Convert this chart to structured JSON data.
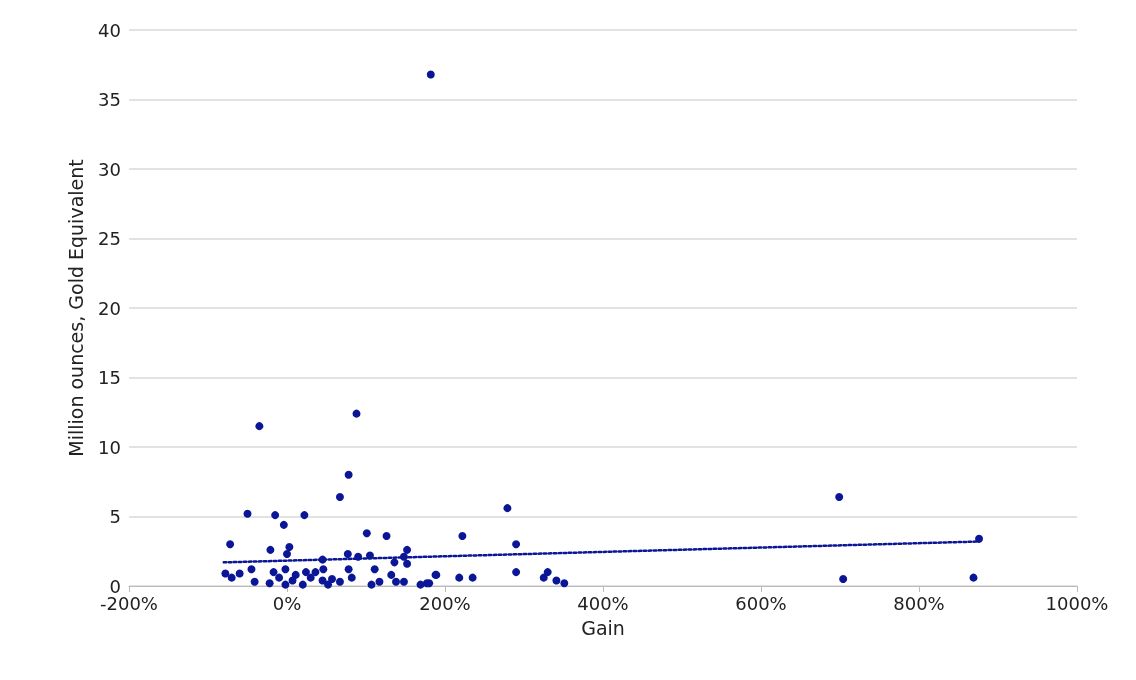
{
  "chart_data": {
    "type": "scatter",
    "xlabel": "Gain",
    "ylabel": "Million ounces, Gold Equivalent",
    "xlim": [
      -200,
      1000
    ],
    "xticks": [
      {
        "value": -200,
        "label": "-200%"
      },
      {
        "value": 0,
        "label": "0%"
      },
      {
        "value": 200,
        "label": "200%"
      },
      {
        "value": 400,
        "label": "400%"
      },
      {
        "value": 600,
        "label": "600%"
      },
      {
        "value": 800,
        "label": "800%"
      },
      {
        "value": 1000,
        "label": "1000%"
      }
    ],
    "ylim": [
      0,
      40
    ],
    "yticks": [
      0,
      5,
      10,
      15,
      20,
      25,
      30,
      35,
      40
    ],
    "grid": "y",
    "marker": "circle",
    "series": [
      {
        "color": "#0a1696",
        "x": [
          182,
          88,
          -35,
          78,
          67,
          -50,
          -15,
          22,
          -4,
          -72,
          -21,
          3,
          0,
          101,
          126,
          152,
          148,
          77,
          90,
          105,
          136,
          152,
          45,
          -45,
          -78,
          -60,
          -70,
          -41,
          -22,
          -17,
          -2,
          -2,
          11,
          24,
          30,
          20,
          36,
          46,
          57,
          67,
          78,
          82,
          111,
          107,
          117,
          132,
          138,
          148,
          169,
          -10,
          7,
          45,
          52,
          180,
          188,
          279,
          222,
          290,
          189,
          218,
          235,
          290,
          325,
          330,
          341,
          351,
          177,
          699,
          704,
          869,
          876
        ],
        "values": [
          36.8,
          12.4,
          11.5,
          8.0,
          6.4,
          5.2,
          5.1,
          5.1,
          4.4,
          3.0,
          2.6,
          2.8,
          2.3,
          3.8,
          3.6,
          2.6,
          2.1,
          2.3,
          2.1,
          2.2,
          1.7,
          1.6,
          1.9,
          1.2,
          0.9,
          0.9,
          0.6,
          0.3,
          0.2,
          1.0,
          1.2,
          0.1,
          0.8,
          1.0,
          0.6,
          0.1,
          1.0,
          1.2,
          0.5,
          0.3,
          1.2,
          0.6,
          1.2,
          0.1,
          0.3,
          0.8,
          0.3,
          0.3,
          0.1,
          0.6,
          0.4,
          0.4,
          0.1,
          0.2,
          0.8,
          5.6,
          3.6,
          3.0,
          0.8,
          0.6,
          0.6,
          1.0,
          0.6,
          1.0,
          0.4,
          0.2,
          0.2,
          6.4,
          0.5,
          0.6,
          3.4
        ]
      },
      {
        "type": "line",
        "color": "#0a1696",
        "line_style": "dotted",
        "marker": "none",
        "x": [
          -80,
          876
        ],
        "values": [
          1.7,
          3.2
        ]
      }
    ]
  }
}
